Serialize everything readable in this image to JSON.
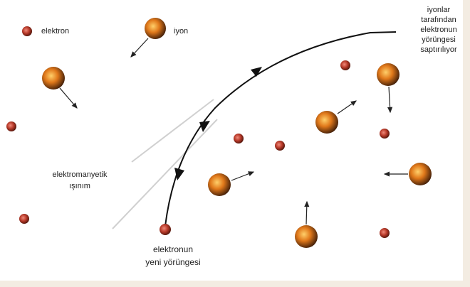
{
  "labels": {
    "electron": "elektron",
    "ion": "iyon",
    "deflection": [
      "iyonlar",
      "tarafından",
      "elektronun",
      "yörüngesi",
      "saptırılıyor"
    ],
    "radiation": [
      "elektromanyetik",
      "ışınım"
    ],
    "new_orbit": [
      "elektronun",
      "yeni yörüngesi"
    ]
  }
}
